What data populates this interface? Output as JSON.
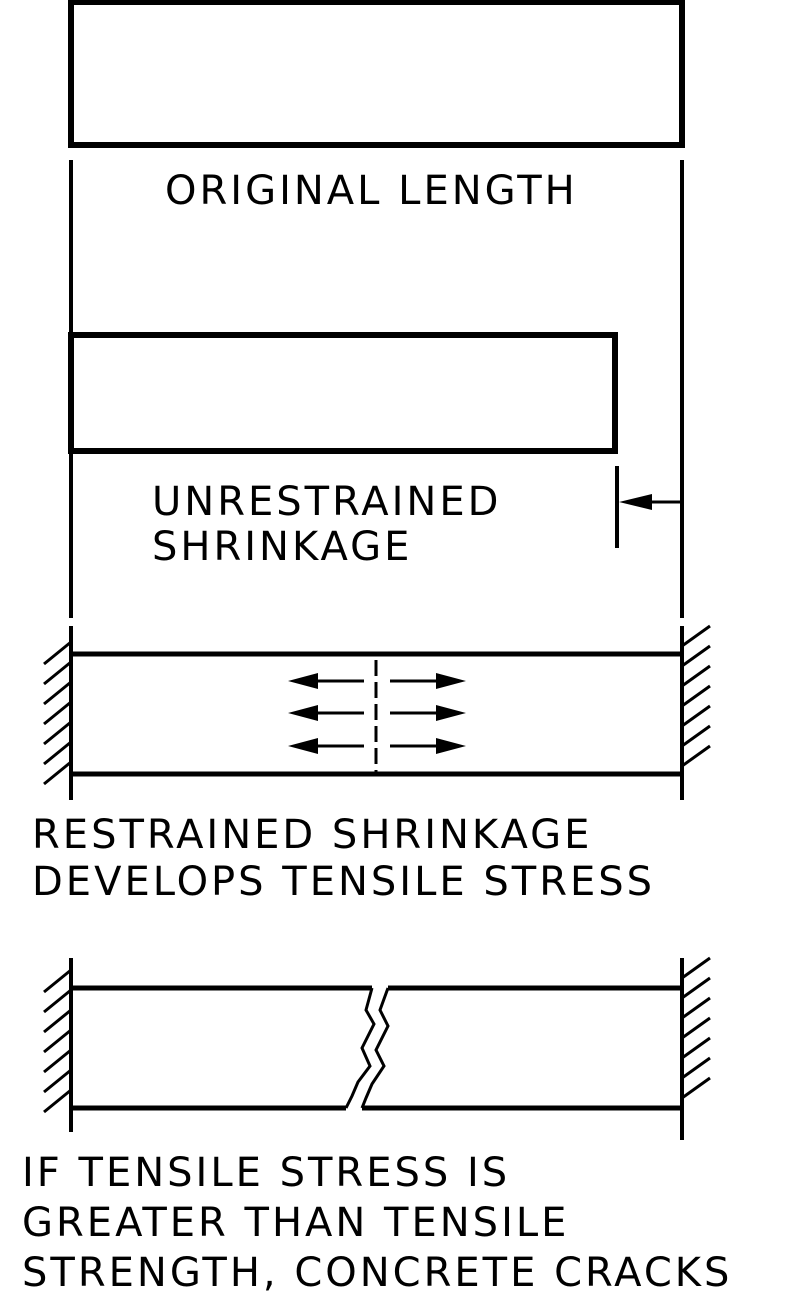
{
  "diagram": {
    "labels": {
      "original_length": "ORIGINAL LENGTH",
      "unrestrained_line1": "UNRESTRAINED",
      "unrestrained_line2": "SHRINKAGE",
      "restrained_line1": "RESTRAINED SHRINKAGE",
      "restrained_line2": "DEVELOPS TENSILE STRESS",
      "crack_line1": "IF TENSILE STRESS IS",
      "crack_line2": "GREATER THAN TENSILE",
      "crack_line3": "STRENGTH, CONCRETE CRACKS"
    },
    "colors": {
      "ink": "#000000",
      "background": "#ffffff"
    }
  }
}
